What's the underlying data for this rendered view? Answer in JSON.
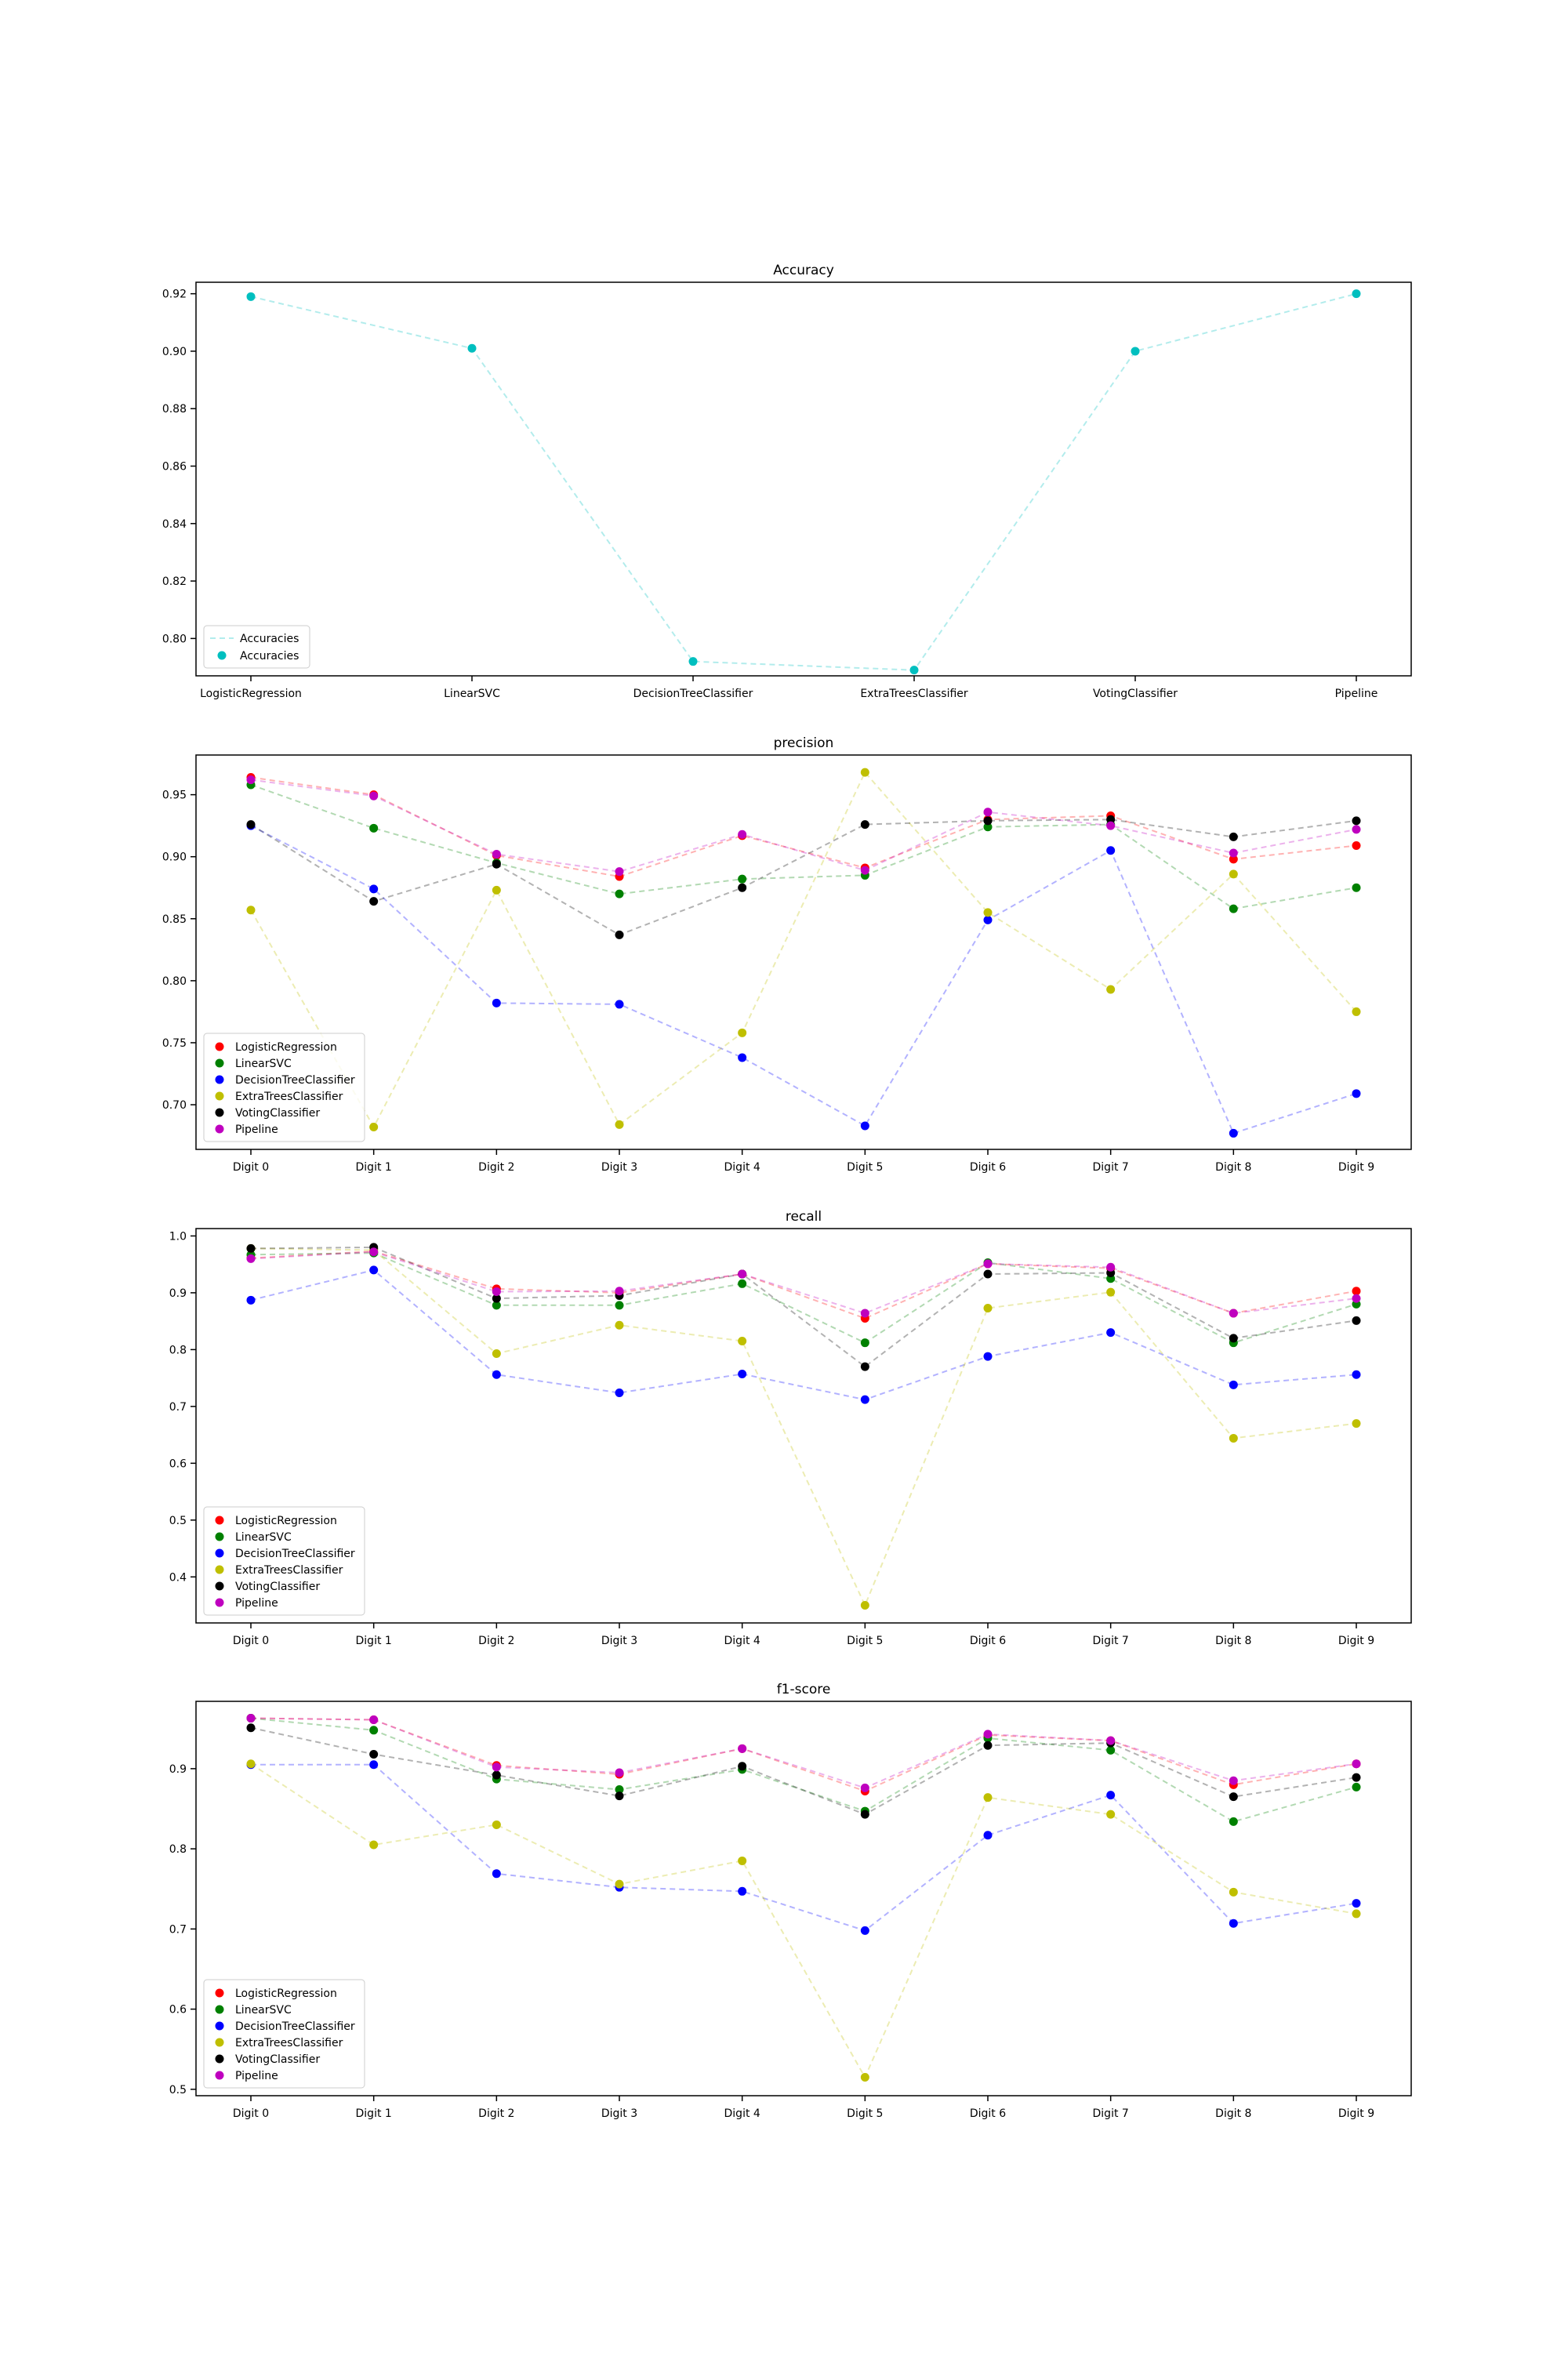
{
  "chart_data": [
    {
      "type": "line",
      "title": "Accuracy",
      "xlabel": "",
      "ylabel": "",
      "categories": [
        "LogisticRegression",
        "LinearSVC",
        "DecisionTreeClassifier",
        "ExtraTreesClassifier",
        "VotingClassifier",
        "Pipeline"
      ],
      "ylim": [
        0.787,
        0.924
      ],
      "yticks": [
        0.8,
        0.82,
        0.84,
        0.86,
        0.88,
        0.9,
        0.92
      ],
      "ytick_labels": [
        "0.80",
        "0.82",
        "0.84",
        "0.86",
        "0.88",
        "0.90",
        "0.92"
      ],
      "grid": false,
      "legend_position": "lower-left",
      "legend": [
        "Accuracies",
        "Accuracies"
      ],
      "series": [
        {
          "name": "Accuracies",
          "color": "#00bfbf",
          "values": [
            0.919,
            0.901,
            0.792,
            0.789,
            0.9,
            0.92
          ]
        }
      ]
    },
    {
      "type": "line",
      "title": "precision",
      "xlabel": "",
      "ylabel": "",
      "categories": [
        "Digit 0",
        "Digit 1",
        "Digit 2",
        "Digit 3",
        "Digit 4",
        "Digit 5",
        "Digit 6",
        "Digit 7",
        "Digit 8",
        "Digit 9"
      ],
      "ylim": [
        0.664,
        0.982
      ],
      "yticks": [
        0.7,
        0.75,
        0.8,
        0.85,
        0.9,
        0.95
      ],
      "ytick_labels": [
        "0.70",
        "0.75",
        "0.80",
        "0.85",
        "0.90",
        "0.95"
      ],
      "grid": false,
      "legend_position": "lower-left",
      "series": [
        {
          "name": "LogisticRegression",
          "color": "#ff0000",
          "values": [
            0.964,
            0.95,
            0.901,
            0.884,
            0.917,
            0.891,
            0.93,
            0.933,
            0.898,
            0.909
          ]
        },
        {
          "name": "LinearSVC",
          "color": "#008000",
          "values": [
            0.958,
            0.923,
            0.895,
            0.87,
            0.882,
            0.885,
            0.924,
            0.926,
            0.858,
            0.875
          ]
        },
        {
          "name": "DecisionTreeClassifier",
          "color": "#0000ff",
          "values": [
            0.925,
            0.874,
            0.782,
            0.781,
            0.738,
            0.683,
            0.849,
            0.905,
            0.677,
            0.709
          ]
        },
        {
          "name": "ExtraTreesClassifier",
          "color": "#bfbf00",
          "values": [
            0.857,
            0.682,
            0.873,
            0.684,
            0.758,
            0.968,
            0.855,
            0.793,
            0.886,
            0.775
          ]
        },
        {
          "name": "VotingClassifier",
          "color": "#000000",
          "values": [
            0.926,
            0.864,
            0.894,
            0.837,
            0.875,
            0.926,
            0.929,
            0.93,
            0.916,
            0.929
          ]
        },
        {
          "name": "Pipeline",
          "color": "#bf00bf",
          "values": [
            0.962,
            0.949,
            0.902,
            0.888,
            0.918,
            0.889,
            0.936,
            0.925,
            0.903,
            0.922
          ]
        }
      ]
    },
    {
      "type": "line",
      "title": "recall",
      "xlabel": "",
      "ylabel": "",
      "categories": [
        "Digit 0",
        "Digit 1",
        "Digit 2",
        "Digit 3",
        "Digit 4",
        "Digit 5",
        "Digit 6",
        "Digit 7",
        "Digit 8",
        "Digit 9"
      ],
      "ylim": [
        0.319,
        1.013
      ],
      "yticks": [
        0.4,
        0.5,
        0.6,
        0.7,
        0.8,
        0.9,
        1.0
      ],
      "ytick_labels": [
        "0.4",
        "0.5",
        "0.6",
        "0.7",
        "0.8",
        "0.9",
        "1.0"
      ],
      "grid": false,
      "legend_position": "lower-left",
      "series": [
        {
          "name": "LogisticRegression",
          "color": "#ff0000",
          "values": [
            0.961,
            0.973,
            0.907,
            0.9,
            0.933,
            0.855,
            0.951,
            0.943,
            0.864,
            0.903
          ]
        },
        {
          "name": "LinearSVC",
          "color": "#008000",
          "values": [
            0.967,
            0.97,
            0.878,
            0.878,
            0.916,
            0.812,
            0.953,
            0.925,
            0.812,
            0.88
          ]
        },
        {
          "name": "DecisionTreeClassifier",
          "color": "#0000ff",
          "values": [
            0.887,
            0.94,
            0.756,
            0.724,
            0.757,
            0.712,
            0.788,
            0.83,
            0.738,
            0.756
          ]
        },
        {
          "name": "ExtraTreesClassifier",
          "color": "#bfbf00",
          "values": [
            0.978,
            0.975,
            0.793,
            0.843,
            0.815,
            0.35,
            0.873,
            0.901,
            0.644,
            0.67
          ]
        },
        {
          "name": "VotingClassifier",
          "color": "#000000",
          "values": [
            0.978,
            0.98,
            0.89,
            0.895,
            0.933,
            0.77,
            0.933,
            0.935,
            0.82,
            0.851
          ]
        },
        {
          "name": "Pipeline",
          "color": "#bf00bf",
          "values": [
            0.96,
            0.972,
            0.902,
            0.903,
            0.933,
            0.864,
            0.951,
            0.945,
            0.864,
            0.89
          ]
        }
      ]
    },
    {
      "type": "line",
      "title": "f1-score",
      "xlabel": "",
      "ylabel": "",
      "categories": [
        "Digit 0",
        "Digit 1",
        "Digit 2",
        "Digit 3",
        "Digit 4",
        "Digit 5",
        "Digit 6",
        "Digit 7",
        "Digit 8",
        "Digit 9"
      ],
      "ylim": [
        0.492,
        0.984
      ],
      "yticks": [
        0.5,
        0.6,
        0.7,
        0.8,
        0.9
      ],
      "ytick_labels": [
        "0.5",
        "0.6",
        "0.7",
        "0.8",
        "0.9"
      ],
      "grid": false,
      "legend_position": "lower-left",
      "series": [
        {
          "name": "LogisticRegression",
          "color": "#ff0000",
          "values": [
            0.963,
            0.961,
            0.904,
            0.893,
            0.925,
            0.872,
            0.942,
            0.935,
            0.88,
            0.906
          ]
        },
        {
          "name": "LinearSVC",
          "color": "#008000",
          "values": [
            0.963,
            0.948,
            0.887,
            0.874,
            0.899,
            0.847,
            0.938,
            0.923,
            0.834,
            0.877
          ]
        },
        {
          "name": "DecisionTreeClassifier",
          "color": "#0000ff",
          "values": [
            0.905,
            0.905,
            0.769,
            0.752,
            0.747,
            0.698,
            0.817,
            0.867,
            0.707,
            0.732
          ]
        },
        {
          "name": "ExtraTreesClassifier",
          "color": "#bfbf00",
          "values": [
            0.906,
            0.805,
            0.83,
            0.756,
            0.785,
            0.515,
            0.864,
            0.843,
            0.746,
            0.719
          ]
        },
        {
          "name": "VotingClassifier",
          "color": "#000000",
          "values": [
            0.951,
            0.918,
            0.892,
            0.866,
            0.903,
            0.843,
            0.929,
            0.932,
            0.865,
            0.889
          ]
        },
        {
          "name": "Pipeline",
          "color": "#bf00bf",
          "values": [
            0.963,
            0.961,
            0.902,
            0.895,
            0.925,
            0.876,
            0.943,
            0.935,
            0.885,
            0.906
          ]
        }
      ]
    }
  ]
}
